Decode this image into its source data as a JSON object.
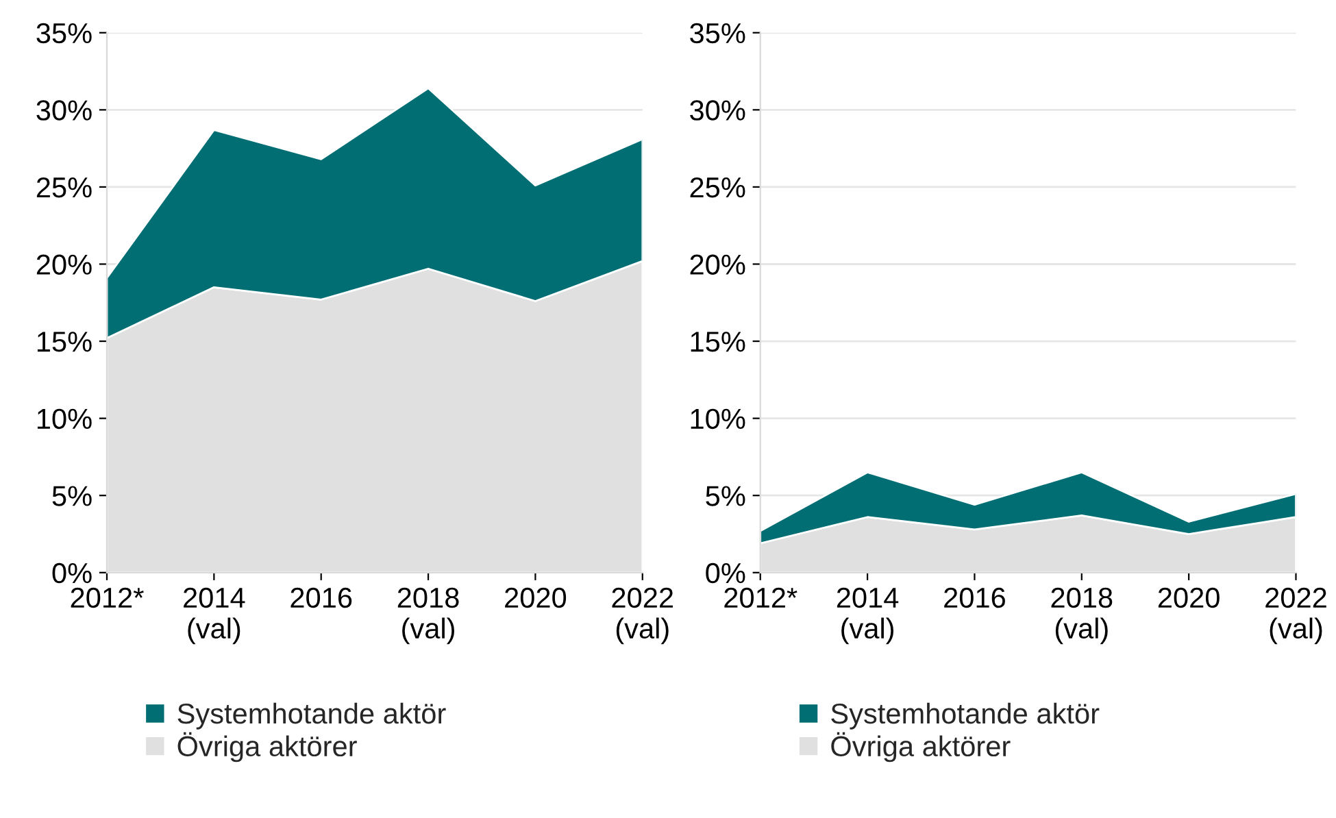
{
  "chart_data": [
    {
      "type": "area",
      "stacked": true,
      "categories": [
        "2012*",
        "2014\n(val)",
        "2016",
        "2018\n(val)",
        "2020",
        "2022\n(val)"
      ],
      "series": [
        {
          "name": "Övriga aktörer",
          "color": "#e0e0e0",
          "values": [
            15.2,
            18.5,
            17.7,
            19.7,
            17.6,
            20.2
          ]
        },
        {
          "name": "Systemhotande aktör",
          "color": "#006e73",
          "values": [
            3.9,
            10.2,
            9.1,
            11.7,
            7.5,
            7.9
          ]
        }
      ],
      "ylim": [
        0,
        35
      ],
      "yticks": [
        {
          "value": 0,
          "label": "0%"
        },
        {
          "value": 5,
          "label": "5%"
        },
        {
          "value": 10,
          "label": "10%"
        },
        {
          "value": 15,
          "label": "15%"
        },
        {
          "value": 20,
          "label": "20%"
        },
        {
          "value": 25,
          "label": "25%"
        },
        {
          "value": 30,
          "label": "30%"
        },
        {
          "value": 35,
          "label": "35%"
        }
      ],
      "grid": "y",
      "legend": "bottom"
    },
    {
      "type": "area",
      "stacked": true,
      "categories": [
        "2012*",
        "2014\n(val)",
        "2016",
        "2018\n(val)",
        "2020",
        "2022\n(val)"
      ],
      "series": [
        {
          "name": "Övriga aktörer",
          "color": "#e0e0e0",
          "values": [
            1.9,
            3.6,
            2.8,
            3.7,
            2.5,
            3.6
          ]
        },
        {
          "name": "Systemhotande aktör",
          "color": "#006e73",
          "values": [
            0.8,
            2.9,
            1.6,
            2.8,
            0.8,
            1.5
          ]
        }
      ],
      "ylim": [
        0,
        35
      ],
      "yticks": [
        {
          "value": 0,
          "label": "0%"
        },
        {
          "value": 5,
          "label": "5%"
        },
        {
          "value": 10,
          "label": "10%"
        },
        {
          "value": 15,
          "label": "15%"
        },
        {
          "value": 20,
          "label": "20%"
        },
        {
          "value": 25,
          "label": "25%"
        },
        {
          "value": 30,
          "label": "30%"
        },
        {
          "value": 35,
          "label": "35%"
        }
      ],
      "grid": "y",
      "legend": "bottom"
    }
  ]
}
